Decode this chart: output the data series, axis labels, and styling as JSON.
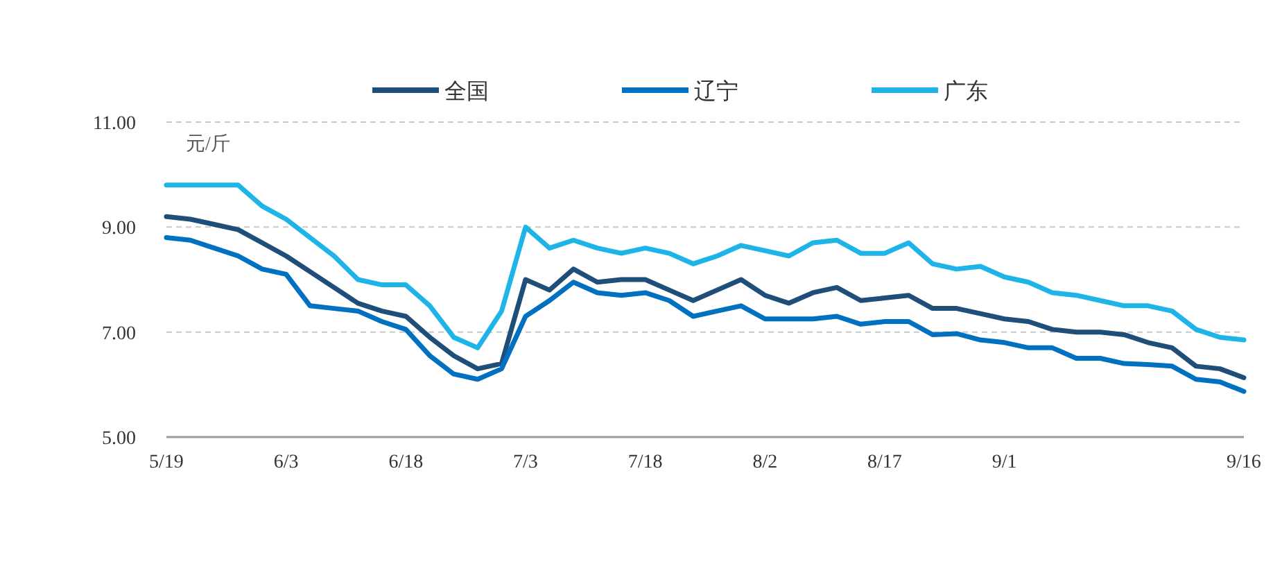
{
  "chart_data": {
    "type": "line",
    "ylabel": "元/斤",
    "categories": [
      "5/19",
      null,
      null,
      null,
      null,
      "6/3",
      null,
      null,
      null,
      null,
      "6/18",
      null,
      null,
      null,
      null,
      "7/3",
      null,
      null,
      null,
      null,
      "7/18",
      null,
      null,
      null,
      null,
      "8/2",
      null,
      null,
      null,
      null,
      "8/17",
      null,
      null,
      null,
      null,
      "9/1",
      null,
      null,
      null,
      null,
      null,
      null,
      null,
      null,
      null,
      "9/16"
    ],
    "series": [
      {
        "name": "全国",
        "color": "#1f4e79",
        "values": [
          9.2,
          9.15,
          9.05,
          8.95,
          8.7,
          8.45,
          8.15,
          7.85,
          7.55,
          7.4,
          7.3,
          6.9,
          6.55,
          6.3,
          6.4,
          8.0,
          7.8,
          8.2,
          7.95,
          8.0,
          8.0,
          7.8,
          7.6,
          7.8,
          8.0,
          7.7,
          7.55,
          7.75,
          7.85,
          7.6,
          7.65,
          7.7,
          7.45,
          7.45,
          7.35,
          7.25,
          7.2,
          7.05,
          7.0,
          7.0,
          6.95,
          6.8,
          6.7,
          6.35,
          6.3,
          6.13
        ]
      },
      {
        "name": "辽宁",
        "color": "#0070c0",
        "values": [
          8.8,
          8.75,
          8.6,
          8.45,
          8.2,
          8.1,
          7.5,
          7.45,
          7.4,
          7.2,
          7.05,
          6.55,
          6.2,
          6.1,
          6.3,
          7.3,
          7.6,
          7.95,
          7.75,
          7.7,
          7.75,
          7.6,
          7.3,
          7.4,
          7.5,
          7.25,
          7.25,
          7.25,
          7.3,
          7.15,
          7.2,
          7.2,
          6.95,
          6.97,
          6.85,
          6.8,
          6.7,
          6.7,
          6.5,
          6.5,
          6.4,
          6.38,
          6.35,
          6.1,
          6.05,
          5.87
        ]
      },
      {
        "name": "广东",
        "color": "#1eb4e8",
        "values": [
          9.8,
          9.8,
          9.8,
          9.8,
          9.4,
          9.15,
          8.8,
          8.45,
          8.0,
          7.9,
          7.9,
          7.5,
          6.9,
          6.7,
          7.4,
          9.0,
          8.6,
          8.75,
          8.6,
          8.5,
          8.6,
          8.5,
          8.3,
          8.45,
          8.65,
          8.55,
          8.45,
          8.7,
          8.75,
          8.5,
          8.5,
          8.7,
          8.3,
          8.2,
          8.25,
          8.05,
          7.95,
          7.75,
          7.7,
          7.6,
          7.5,
          7.5,
          7.4,
          7.05,
          6.9,
          6.85
        ]
      }
    ],
    "ylim": [
      5,
      11
    ],
    "yticks": [
      {
        "value": 5,
        "label": "5.00"
      },
      {
        "value": 7,
        "label": "7.00"
      },
      {
        "value": 9,
        "label": "9.00"
      },
      {
        "value": 11,
        "label": "11.00"
      }
    ],
    "grid": "y",
    "legend": "top",
    "marker": "none",
    "line_style": "solid"
  }
}
